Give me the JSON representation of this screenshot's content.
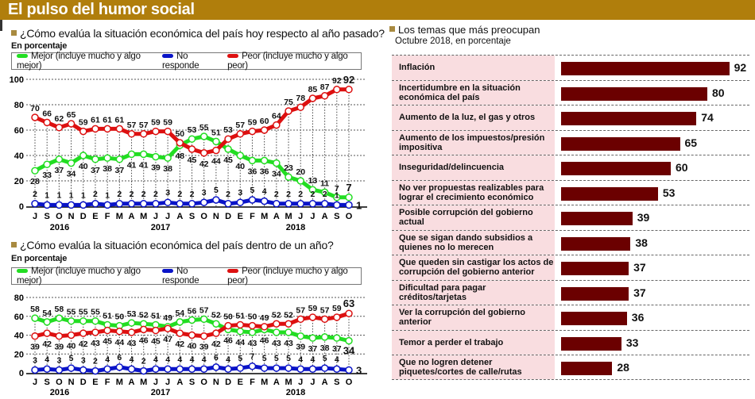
{
  "title": "El pulso del humor social",
  "legend": {
    "mejor": "Mejor (incluye mucho y algo mejor)",
    "no_responde": "No responde",
    "peor": "Peor (incluye mucho y algo peor)"
  },
  "colors": {
    "mejor": "#22dd22",
    "no_responde": "#0a14c8",
    "peor": "#dd1010",
    "bar": "#6b0000",
    "title_bg": "#b07e0c"
  },
  "chart_data": [
    {
      "type": "line",
      "title": "¿Cómo evalúa la situación económica del país hoy respecto al año pasado?",
      "subtitle": "En porcentaje",
      "ylim": [
        0,
        100
      ],
      "yticks": [
        0,
        20,
        40,
        60,
        80,
        100
      ],
      "categories": [
        "J",
        "S",
        "O",
        "N",
        "D",
        "E",
        "F",
        "M",
        "A",
        "M",
        "J",
        "J",
        "A",
        "S",
        "O",
        "N",
        "D",
        "E",
        "F",
        "M",
        "A",
        "M",
        "J",
        "J",
        "A",
        "S",
        "O"
      ],
      "years": [
        "2016",
        "2017",
        "2018"
      ],
      "series": [
        {
          "name": "Mejor (incluye mucho y algo mejor)",
          "key": "mejor",
          "values": [
            28,
            33,
            37,
            34,
            40,
            37,
            38,
            37,
            41,
            41,
            39,
            38,
            48,
            53,
            55,
            51,
            45,
            40,
            36,
            36,
            34,
            23,
            20,
            13,
            11,
            7,
            7
          ]
        },
        {
          "name": "No responde",
          "key": "no_responde",
          "values": [
            2,
            1,
            1,
            1,
            1,
            2,
            1,
            2,
            2,
            2,
            2,
            3,
            2,
            2,
            3,
            5,
            2,
            3,
            5,
            4,
            2,
            2,
            2,
            2,
            2,
            1,
            1
          ]
        },
        {
          "name": "Peor (incluye mucho y algo peor)",
          "key": "peor",
          "values": [
            70,
            66,
            62,
            65,
            59,
            61,
            61,
            61,
            57,
            57,
            59,
            59,
            50,
            45,
            42,
            44,
            53,
            57,
            59,
            60,
            64,
            75,
            78,
            85,
            87,
            92,
            92
          ]
        }
      ]
    },
    {
      "type": "line",
      "title": "¿Cómo evalúa la situación económica del país dentro de un año?",
      "subtitle": "En porcentaje",
      "ylim": [
        0,
        80
      ],
      "yticks": [
        0,
        20,
        40,
        60,
        80
      ],
      "categories": [
        "J",
        "S",
        "O",
        "N",
        "D",
        "E",
        "F",
        "M",
        "A",
        "M",
        "J",
        "J",
        "A",
        "S",
        "O",
        "N",
        "D",
        "E",
        "F",
        "M",
        "A",
        "M",
        "J",
        "J",
        "A",
        "S",
        "O"
      ],
      "years": [
        "2016",
        "2017",
        "2018"
      ],
      "series": [
        {
          "name": "Mejor (incluye mucho y algo mejor)",
          "key": "mejor",
          "values": [
            58,
            54,
            58,
            55,
            55,
            55,
            51,
            50,
            53,
            52,
            51,
            49,
            54,
            56,
            57,
            52,
            46,
            44,
            43,
            46,
            43,
            43,
            39,
            37,
            38,
            37,
            34
          ]
        },
        {
          "name": "No responde",
          "key": "no_responde",
          "values": [
            3,
            4,
            3,
            5,
            3,
            2,
            4,
            6,
            4,
            2,
            4,
            4,
            4,
            4,
            4,
            6,
            4,
            5,
            7,
            5,
            5,
            5,
            4,
            4,
            5,
            4,
            3
          ]
        },
        {
          "name": "Peor (incluye mucho y algo peor)",
          "key": "peor",
          "values": [
            39,
            42,
            39,
            40,
            42,
            43,
            45,
            44,
            43,
            46,
            45,
            47,
            42,
            40,
            39,
            42,
            50,
            51,
            50,
            49,
            52,
            52,
            57,
            59,
            57,
            59,
            63
          ]
        }
      ]
    },
    {
      "type": "bar",
      "title": "Los temas que más preocupan",
      "subtitle": "Octubre 2018, en porcentaje",
      "categories": [
        "Inflación",
        "Incertidumbre en la situación económica del país",
        "Aumento de la luz, el gas y otros",
        "Aumento de los impuestos/presión impositiva",
        "Inseguridad/delincuencia",
        "No ver propuestas realizables para lograr el crecimiento económico",
        "Posible corrupción del gobierno actual",
        "Que se sigan dando subsidios a quienes no lo merecen",
        "Que queden sin castigar los actos de corrupción del gobierno anterior",
        "Dificultad para pagar créditos/tarjetas",
        "Ver la corrupción del gobierno anterior",
        "Temor a perder el trabajo",
        "Que no logren detener piquetes/cortes de calle/rutas"
      ],
      "values": [
        92,
        80,
        74,
        65,
        60,
        53,
        39,
        38,
        37,
        37,
        36,
        33,
        28
      ],
      "xlim": [
        0,
        100
      ]
    }
  ]
}
